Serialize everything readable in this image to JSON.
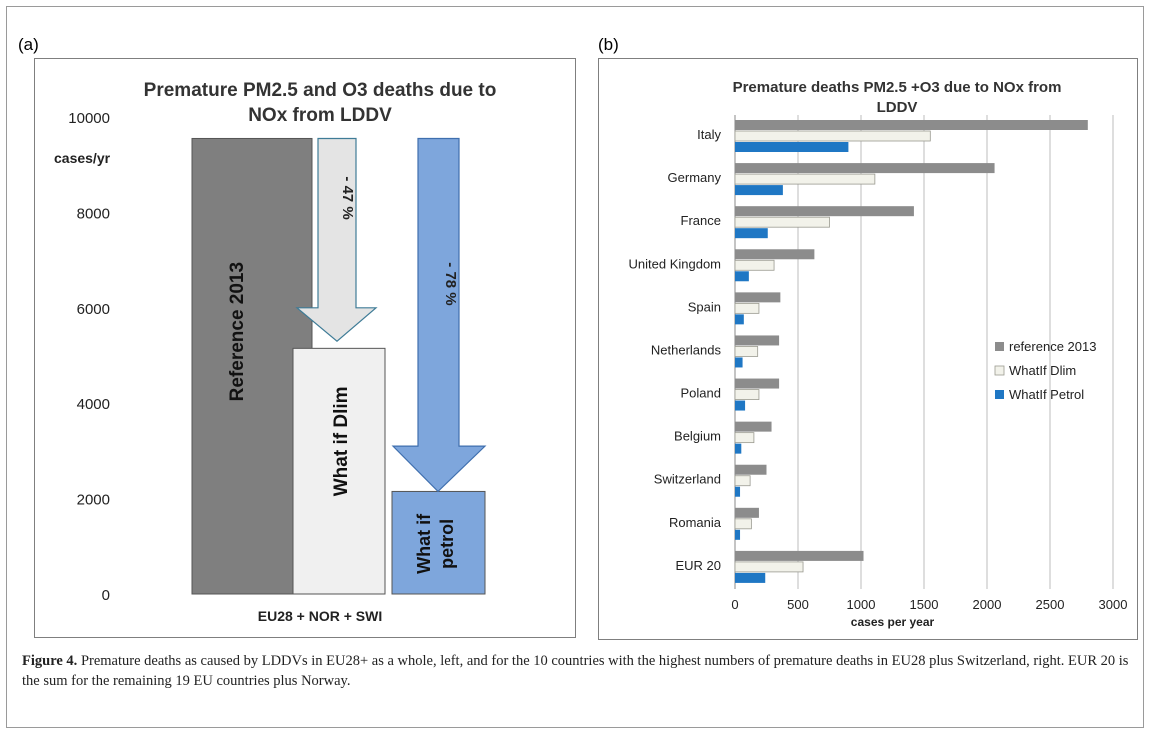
{
  "panel_a_label": "(a)",
  "panel_b_label": "(b)",
  "chart_data": [
    {
      "type": "bar",
      "title": "Premature PM2.5 and O3 deaths due to NOx from LDDV",
      "ylabel": "cases/yr",
      "xlabel": "EU28 + NOR + SWI",
      "ylim": [
        0,
        10000
      ],
      "yticks": [
        0,
        2000,
        4000,
        6000,
        8000,
        10000
      ],
      "grid": false,
      "categories": [
        "Reference 2013",
        "What if Dlim",
        "What if petrol"
      ],
      "values": [
        9550,
        5150,
        2150
      ],
      "colors": [
        "#7f7f7f",
        "#f0f0f0",
        "#7ea6dc"
      ],
      "annotations": [
        "- 47 %",
        "- 78 %"
      ]
    },
    {
      "type": "bar",
      "orientation": "horizontal",
      "title": "Premature deaths PM2.5 +O3 due to NOx from LDDV",
      "xlabel": "cases per year",
      "xlim": [
        0,
        3000
      ],
      "xticks": [
        0,
        500,
        1000,
        1500,
        2000,
        2500,
        3000
      ],
      "grid": true,
      "legend_position": "right",
      "categories": [
        "Italy",
        "Germany",
        "France",
        "United Kingdom",
        "Spain",
        "Netherlands",
        "Poland",
        "Belgium",
        "Switzerland",
        "Romania",
        "EUR 20"
      ],
      "series": [
        {
          "name": "reference 2013",
          "color": "#8c8c8c",
          "values": [
            2800,
            2060,
            1420,
            630,
            360,
            350,
            350,
            290,
            250,
            190,
            1020
          ]
        },
        {
          "name": "WhatIf Dlim",
          "color": "#f2f2ea",
          "values": [
            1550,
            1110,
            750,
            310,
            190,
            180,
            190,
            150,
            120,
            130,
            540
          ]
        },
        {
          "name": "WhatIf Petrol",
          "color": "#1f77c4",
          "values": [
            900,
            380,
            260,
            110,
            70,
            60,
            80,
            50,
            40,
            40,
            240
          ]
        }
      ]
    }
  ],
  "caption": {
    "label": "Figure 4.",
    "text": " Premature deaths as caused by LDDVs in EU28+ as a whole, left, and for the 10 countries with the highest numbers of premature deaths in EU28 plus Switzerland, right. EUR 20 is the sum for the remaining 19 EU countries plus Norway."
  }
}
